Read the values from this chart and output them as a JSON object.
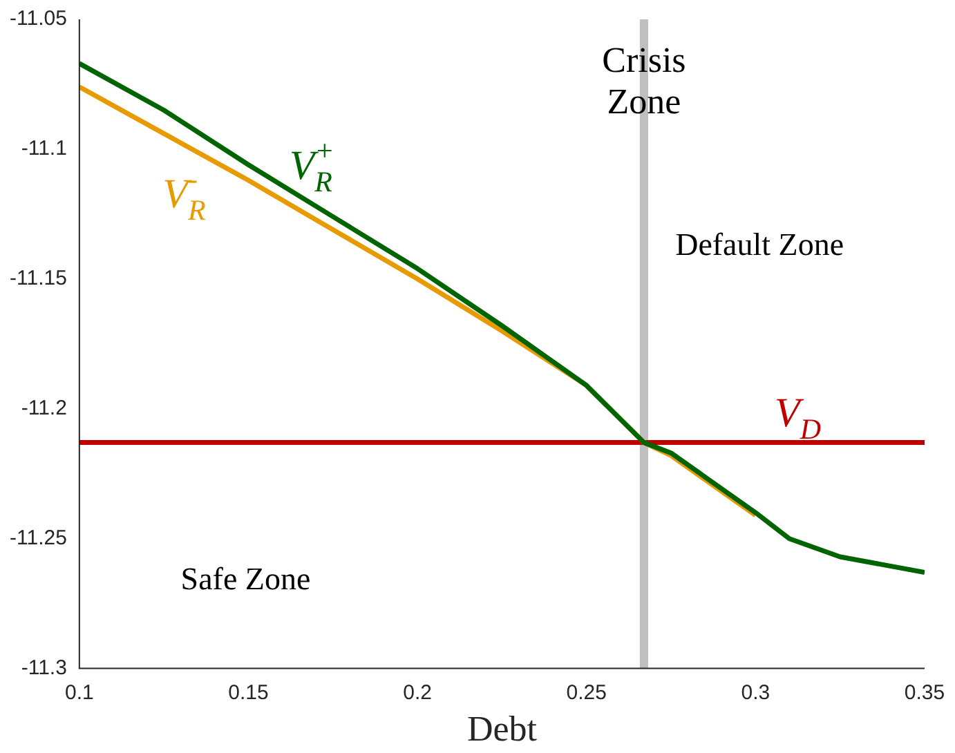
{
  "chart_data": {
    "type": "line",
    "xlabel": "Debt",
    "xlim": [
      0.1,
      0.35
    ],
    "xticks": [
      0.1,
      0.15,
      0.2,
      0.25,
      0.3,
      0.35
    ],
    "ylim": [
      -11.3,
      -11.05
    ],
    "yticks": [
      -11.3,
      -11.25,
      -11.2,
      -11.15,
      -11.1,
      -11.05
    ],
    "grid": false,
    "legend": false,
    "marker": "none",
    "line_style": "solid",
    "series": [
      {
        "name": "V$_{R}$$^{+}$",
        "color": "#006400",
        "x": [
          0.1,
          0.125,
          0.15,
          0.175,
          0.2,
          0.225,
          0.25,
          0.267,
          0.275,
          0.3,
          0.31,
          0.325,
          0.35
        ],
        "values": [
          -11.067,
          -11.085,
          -11.106,
          -11.126,
          -11.146,
          -11.168,
          -11.191,
          -11.213,
          -11.217,
          -11.24,
          -11.25,
          -11.257,
          -11.263
        ]
      },
      {
        "name": "V$_{R}$$^{-}$",
        "color": "#e89b00",
        "x": [
          0.1,
          0.125,
          0.15,
          0.175,
          0.2,
          0.225,
          0.25,
          0.267,
          0.275,
          0.3
        ],
        "values": [
          -11.076,
          -11.094,
          -11.112,
          -11.131,
          -11.15,
          -11.17,
          -11.191,
          -11.213,
          -11.218,
          -11.241
        ]
      },
      {
        "name": "V$_{D}$",
        "color": "#c00000",
        "x": [
          0.1,
          0.35
        ],
        "values": [
          -11.213,
          -11.213
        ]
      }
    ],
    "ref_lines": [
      {
        "axis": "x",
        "value": 0.267,
        "label": "Crisis Zone",
        "color": "#bfbfbf"
      }
    ],
    "annotations": [
      "Default Zone",
      "Safe Zone"
    ]
  }
}
